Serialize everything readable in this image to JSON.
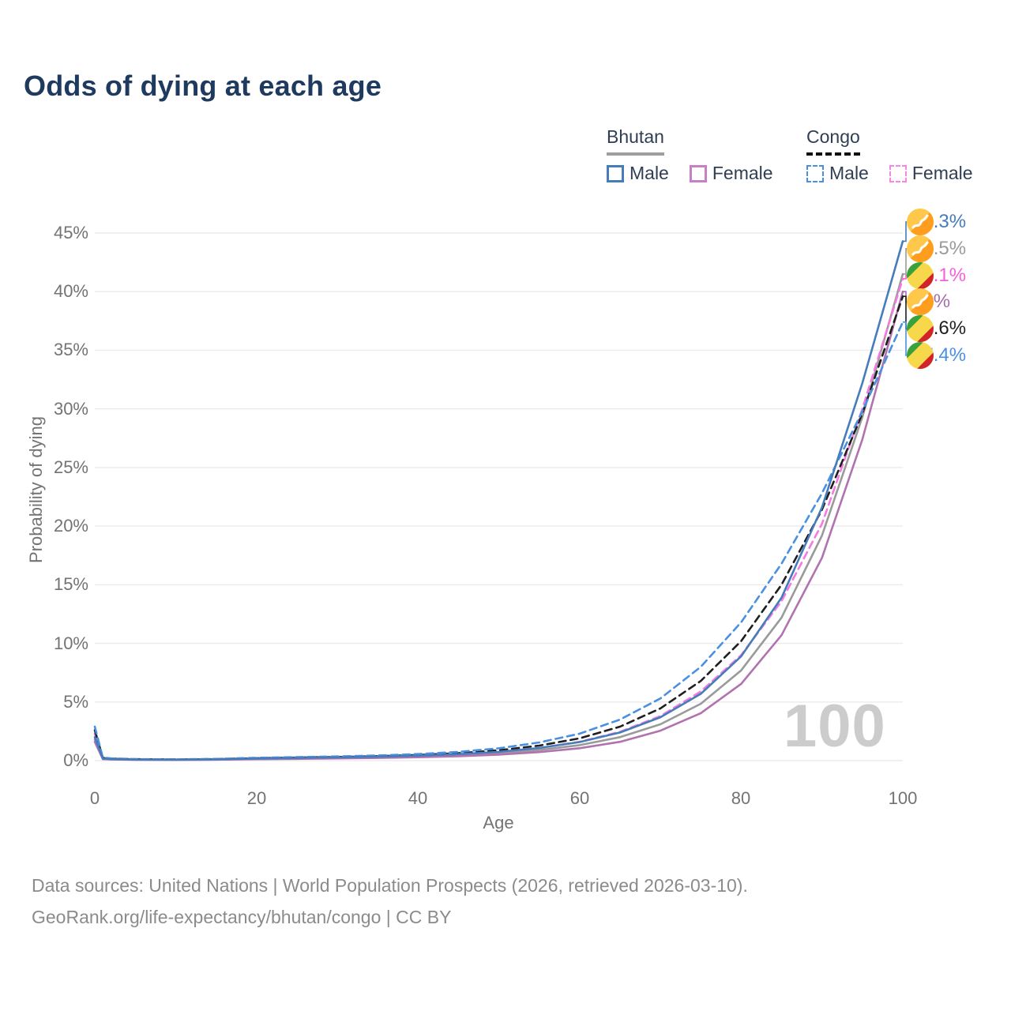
{
  "legend": {
    "groups": [
      {
        "name": "Bhutan",
        "line_style": "solid",
        "underline_color": "#9e9e9e",
        "items": [
          {
            "label": "Male",
            "color": "#477cbb",
            "dash": false
          },
          {
            "label": "Female",
            "color": "#c77fc7",
            "dash": false
          }
        ]
      },
      {
        "name": "Congo",
        "line_style": "dashed",
        "underline_color": "#111111",
        "items": [
          {
            "label": "Male",
            "color": "#4a90e2",
            "dash": true
          },
          {
            "label": "Female",
            "color": "#fb84e1",
            "dash": true
          }
        ]
      }
    ]
  },
  "watermark_age": "100",
  "footer": {
    "line1": "Data sources: United Nations | World Population Prospects (2026, retrieved 2026-03-10).",
    "line2": "GeoRank.org/life-expectancy/bhutan/congo | CC BY"
  },
  "chart_data": {
    "type": "line",
    "title": "Odds of dying at each age",
    "xlabel": "Age",
    "ylabel": "Probability of dying",
    "xlim": [
      0,
      100
    ],
    "ylim": [
      0,
      45
    ],
    "x_ticks": [
      0,
      20,
      40,
      60,
      80,
      100
    ],
    "y_ticks": [
      0,
      5,
      10,
      15,
      20,
      25,
      30,
      35,
      40,
      45
    ],
    "y_tick_suffix": "%",
    "grid": true,
    "legend_position": "top-right",
    "hover_age_indicator": 100,
    "x": [
      0,
      1,
      2,
      5,
      10,
      15,
      20,
      25,
      30,
      35,
      40,
      45,
      50,
      55,
      60,
      65,
      70,
      75,
      80,
      85,
      90,
      95,
      100
    ],
    "series": [
      {
        "name": "Bhutan Male",
        "country": "Bhutan",
        "sex": "male",
        "flag": "bhutan",
        "color": "#477cbb",
        "dash": false,
        "end_label": "44.3%",
        "label_color": "#477cbb",
        "values": [
          2.0,
          0.17,
          0.13,
          0.09,
          0.08,
          0.11,
          0.17,
          0.22,
          0.27,
          0.33,
          0.42,
          0.55,
          0.75,
          1.08,
          1.58,
          2.4,
          3.7,
          5.7,
          8.9,
          13.9,
          21.6,
          32.2,
          44.3
        ]
      },
      {
        "name": "Bhutan Both sexes",
        "country": "Bhutan",
        "sex": "both",
        "flag": "bhutan",
        "color": "#9a9a9a",
        "dash": false,
        "end_label": "41.5%",
        "label_color": "#9a9a9a",
        "values": [
          1.8,
          0.15,
          0.11,
          0.08,
          0.07,
          0.09,
          0.14,
          0.18,
          0.23,
          0.28,
          0.35,
          0.46,
          0.62,
          0.9,
          1.32,
          2.0,
          3.1,
          4.85,
          7.7,
          12.2,
          19.2,
          29.3,
          41.5
        ]
      },
      {
        "name": "Congo Female",
        "country": "Congo",
        "sex": "female",
        "flag": "congo",
        "color": "#f47ae0",
        "dash": true,
        "end_label": "41.1%",
        "label_color": "#f75fd8",
        "values": [
          2.3,
          0.2,
          0.15,
          0.1,
          0.09,
          0.11,
          0.17,
          0.22,
          0.27,
          0.33,
          0.41,
          0.54,
          0.74,
          1.08,
          1.6,
          2.45,
          3.8,
          5.9,
          9.0,
          13.6,
          20.2,
          30.0,
          41.1
        ]
      },
      {
        "name": "Bhutan Female",
        "country": "Bhutan",
        "sex": "female",
        "flag": "bhutan",
        "color": "#b172b0",
        "dash": false,
        "end_label": "40%",
        "label_color": "#a06fa8",
        "values": [
          1.6,
          0.13,
          0.1,
          0.07,
          0.06,
          0.08,
          0.12,
          0.15,
          0.19,
          0.23,
          0.29,
          0.38,
          0.51,
          0.73,
          1.06,
          1.6,
          2.55,
          4.05,
          6.55,
          10.7,
          17.3,
          27.4,
          40.0
        ]
      },
      {
        "name": "Congo Both sexes",
        "country": "Congo",
        "sex": "both",
        "flag": "congo",
        "color": "#1f1f1f",
        "dash": true,
        "end_label": "39.6%",
        "label_color": "#1f1f1f",
        "values": [
          2.6,
          0.23,
          0.17,
          0.12,
          0.1,
          0.13,
          0.2,
          0.26,
          0.31,
          0.38,
          0.48,
          0.63,
          0.88,
          1.28,
          1.9,
          2.9,
          4.45,
          6.8,
          10.2,
          15.0,
          21.4,
          29.6,
          39.6
        ]
      },
      {
        "name": "Congo Male",
        "country": "Congo",
        "sex": "male",
        "flag": "congo",
        "color": "#4a90e2",
        "dash": true,
        "end_label": "37.4%",
        "label_color": "#4a90e2",
        "values": [
          2.9,
          0.26,
          0.19,
          0.13,
          0.11,
          0.15,
          0.24,
          0.3,
          0.36,
          0.44,
          0.56,
          0.75,
          1.05,
          1.55,
          2.3,
          3.5,
          5.3,
          8.0,
          11.8,
          16.8,
          22.8,
          29.8,
          37.4
        ]
      }
    ]
  }
}
